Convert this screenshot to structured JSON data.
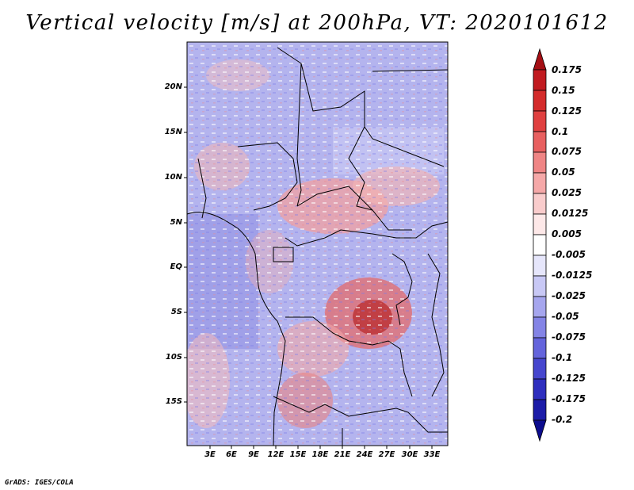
{
  "title": "Vertical velocity [m/s] at 200hPa, VT: 2020101612",
  "credit": "GrADS: IGES/COLA",
  "map": {
    "variable": "Vertical velocity",
    "units": "m/s",
    "level": "200hPa",
    "valid_time": "2020101612",
    "lat_labels": [
      "20N",
      "15N",
      "10N",
      "5N",
      "EQ",
      "5S",
      "10S",
      "15S"
    ],
    "lon_labels": [
      "3E",
      "6E",
      "9E",
      "12E",
      "15E",
      "18E",
      "21E",
      "24E",
      "27E",
      "30E",
      "33E"
    ]
  },
  "colorbar": {
    "labels": [
      "0.175",
      "0.15",
      "0.125",
      "0.1",
      "0.075",
      "0.05",
      "0.025",
      "0.0125",
      "0.005",
      "-0.005",
      "-0.0125",
      "-0.025",
      "-0.05",
      "-0.075",
      "-0.1",
      "-0.125",
      "-0.175",
      "-0.2"
    ],
    "colors": [
      "#a50f15",
      "#c11b20",
      "#d42b2b",
      "#e04040",
      "#e86060",
      "#ef8585",
      "#f5a8a8",
      "#f9cccc",
      "#fde8e8",
      "#ffffff",
      "#e6e6fb",
      "#c8c8f5",
      "#a6a6ee",
      "#8484e6",
      "#6464dc",
      "#4646ce",
      "#2e2ebe",
      "#1c1ca8",
      "#0c0c8e"
    ]
  }
}
